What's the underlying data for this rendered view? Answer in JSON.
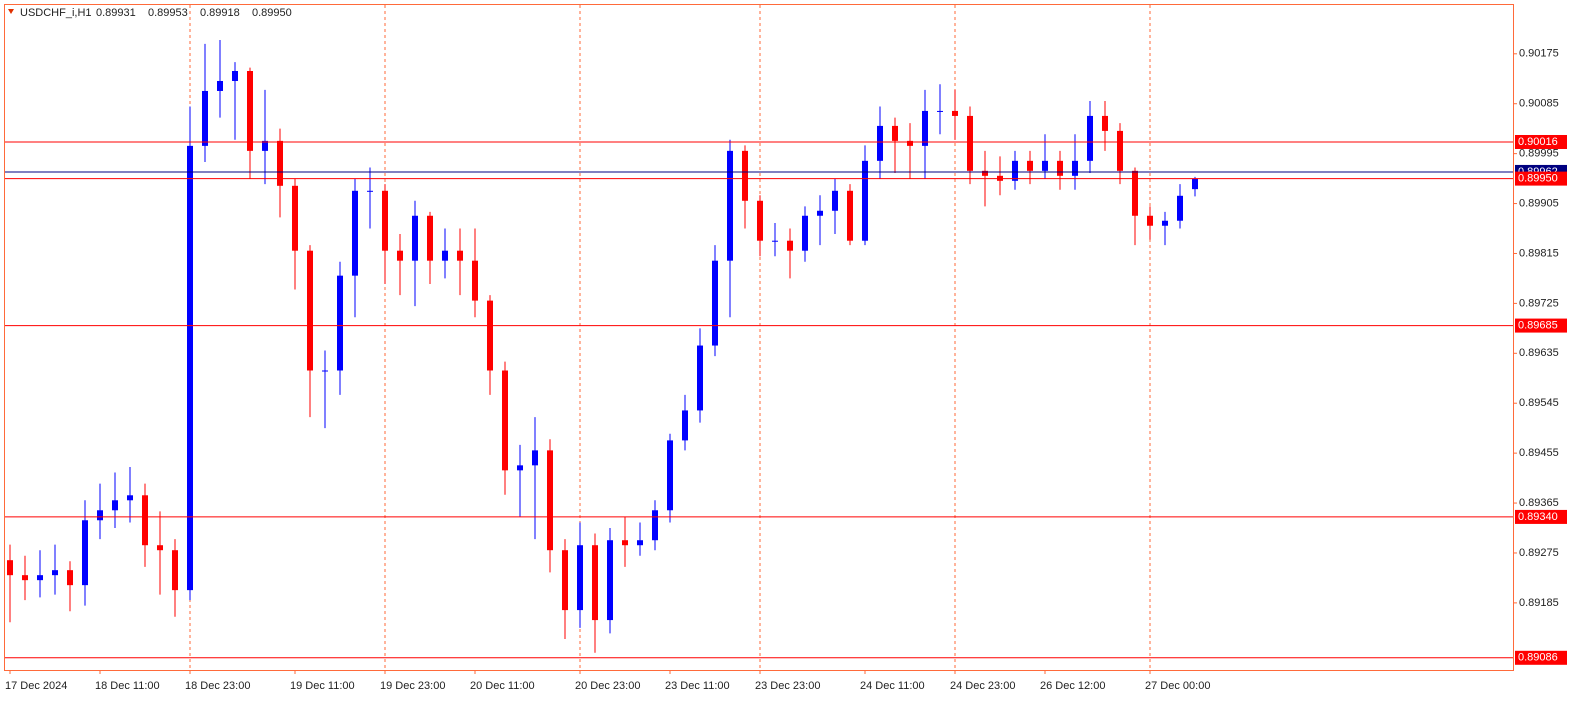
{
  "chart_data": {
    "type": "candlestick",
    "symbol": "USDCHF_i,H1",
    "header_labels": [
      "0.89931",
      "0.89953",
      "0.89918",
      "0.89950"
    ],
    "up_color": "#0000ff",
    "down_color": "#ff0000",
    "open": [
      0.89262,
      0.89235,
      0.89226,
      0.89235,
      0.89244,
      0.89217,
      0.89334,
      0.89352,
      0.8937,
      0.89379,
      0.89289,
      0.8928,
      0.89208,
      0.90009,
      0.90108,
      0.90126,
      0.90144,
      0.9,
      0.90018,
      0.89937,
      0.8982,
      0.89604,
      0.89604,
      0.89775,
      0.89928,
      0.89928,
      0.8982,
      0.89802,
      0.89883,
      0.89802,
      0.8982,
      0.89802,
      0.8973,
      0.89604,
      0.89424,
      0.89433,
      0.8946,
      0.8928,
      0.89172,
      0.89289,
      0.89154,
      0.89298,
      0.89289,
      0.89298,
      0.89352,
      0.89478,
      0.89532,
      0.89649,
      0.89802,
      0.9,
      0.8991,
      0.89838,
      0.89838,
      0.8982,
      0.89883,
      0.89892,
      0.89928,
      0.89838,
      0.89982,
      0.90045,
      0.90018,
      0.90009,
      0.90072,
      0.90072,
      0.90063,
      0.89964,
      0.89955,
      0.89946,
      0.89982,
      0.89964,
      0.89982,
      0.89955,
      0.89982,
      0.90063,
      0.90036,
      0.89964,
      0.89883,
      0.89865,
      0.89874,
      0.89931
    ],
    "high": [
      0.8929,
      0.8927,
      0.8928,
      0.8929,
      0.8926,
      0.8937,
      0.894,
      0.8942,
      0.8943,
      0.894,
      0.8935,
      0.893,
      0.9008,
      0.90193,
      0.902,
      0.9016,
      0.9015,
      0.9011,
      0.9004,
      0.8995,
      0.8983,
      0.8964,
      0.898,
      0.8995,
      0.8997,
      0.8994,
      0.8985,
      0.8991,
      0.8989,
      0.8986,
      0.8986,
      0.8986,
      0.8974,
      0.8962,
      0.8947,
      0.8952,
      0.8948,
      0.893,
      0.8933,
      0.8931,
      0.8932,
      0.8934,
      0.8933,
      0.8937,
      0.8949,
      0.8956,
      0.8968,
      0.8983,
      0.9002,
      0.9001,
      0.8992,
      0.8987,
      0.8986,
      0.899,
      0.8992,
      0.8995,
      0.8994,
      0.9001,
      0.9008,
      0.9006,
      0.9005,
      0.9011,
      0.9012,
      0.9011,
      0.9008,
      0.9,
      0.8999,
      0.9,
      0.9,
      0.9003,
      0.9,
      0.9003,
      0.9009,
      0.9009,
      0.9005,
      0.8997,
      0.899,
      0.8989,
      0.8994,
      0.89953
    ],
    "low": [
      0.8915,
      0.8919,
      0.89195,
      0.892,
      0.8917,
      0.8918,
      0.893,
      0.8932,
      0.8933,
      0.8925,
      0.892,
      0.8916,
      0.8919,
      0.8998,
      0.9006,
      0.9002,
      0.8995,
      0.8994,
      0.8988,
      0.8975,
      0.8952,
      0.895,
      0.8956,
      0.897,
      0.8986,
      0.8976,
      0.8974,
      0.8972,
      0.8976,
      0.8977,
      0.8974,
      0.897,
      0.8956,
      0.8938,
      0.8934,
      0.893,
      0.8924,
      0.8912,
      0.8914,
      0.89095,
      0.8913,
      0.8925,
      0.8927,
      0.8928,
      0.8933,
      0.8946,
      0.8951,
      0.8963,
      0.897,
      0.8986,
      0.8981,
      0.8981,
      0.8977,
      0.898,
      0.8983,
      0.8985,
      0.8983,
      0.8983,
      0.8995,
      0.8996,
      0.8995,
      0.8995,
      0.9003,
      0.9002,
      0.8994,
      0.899,
      0.8992,
      0.8993,
      0.8994,
      0.8995,
      0.8993,
      0.8993,
      0.8996,
      0.9,
      0.8994,
      0.8983,
      0.8984,
      0.8983,
      0.8986,
      0.89918
    ],
    "close": [
      0.89235,
      0.89226,
      0.89235,
      0.89244,
      0.89217,
      0.89334,
      0.89352,
      0.8937,
      0.89379,
      0.89289,
      0.8928,
      0.89208,
      0.90009,
      0.90108,
      0.90126,
      0.90144,
      0.9,
      0.90018,
      0.89937,
      0.8982,
      0.89604,
      0.89604,
      0.89775,
      0.89928,
      0.89928,
      0.8982,
      0.89802,
      0.89883,
      0.89802,
      0.8982,
      0.89802,
      0.8973,
      0.89604,
      0.89424,
      0.89433,
      0.8946,
      0.8928,
      0.89172,
      0.89289,
      0.89154,
      0.89298,
      0.89289,
      0.89298,
      0.89352,
      0.89478,
      0.89532,
      0.89649,
      0.89802,
      0.9,
      0.8991,
      0.89838,
      0.89838,
      0.8982,
      0.89883,
      0.89892,
      0.89928,
      0.89838,
      0.89982,
      0.90045,
      0.90018,
      0.90009,
      0.90072,
      0.90072,
      0.90063,
      0.89964,
      0.89955,
      0.89946,
      0.89982,
      0.89964,
      0.89982,
      0.89955,
      0.89982,
      0.90063,
      0.90036,
      0.89964,
      0.89883,
      0.89865,
      0.89874,
      0.89919,
      0.8995
    ],
    "x_labels": [
      {
        "index": 0,
        "label": "17 Dec 2024"
      },
      {
        "index": 6,
        "label": "18 Dec 11:00"
      },
      {
        "index": 12,
        "label": "18 Dec 23:00"
      },
      {
        "index": 19,
        "label": "19 Dec 11:00"
      },
      {
        "index": 25,
        "label": "19 Dec 23:00"
      },
      {
        "index": 31,
        "label": "20 Dec 11:00"
      },
      {
        "index": 38,
        "label": "20 Dec 23:00"
      },
      {
        "index": 44,
        "label": "23 Dec 11:00"
      },
      {
        "index": 50,
        "label": "23 Dec 23:00"
      },
      {
        "index": 57,
        "label": "24 Dec 11:00"
      },
      {
        "index": 63,
        "label": "24 Dec 23:00"
      },
      {
        "index": 69,
        "label": "26 Dec 12:00"
      },
      {
        "index": 76,
        "label": "27 Dec 00:00"
      }
    ],
    "ylim": [
      0.89064,
      0.90263
    ],
    "yticks": [
      0.90175,
      0.90085,
      0.89995,
      0.89905,
      0.89815,
      0.89725,
      0.89635,
      0.89545,
      0.89455,
      0.89365,
      0.89275,
      0.89185
    ],
    "levels": [
      {
        "value": 0.90016,
        "label": "0.90016",
        "color": "#ff0000"
      },
      {
        "value": 0.89962,
        "label": "0.89962",
        "color": "#000080"
      },
      {
        "value": 0.8995,
        "label": "0.89950",
        "color": "#ff0000"
      },
      {
        "value": 0.89685,
        "label": "0.89685",
        "color": "#ff0000"
      },
      {
        "value": 0.8934,
        "label": "0.89340",
        "color": "#ff0000"
      },
      {
        "value": 0.89086,
        "label": "0.89086",
        "color": "#ff0000"
      }
    ],
    "grid": true
  }
}
